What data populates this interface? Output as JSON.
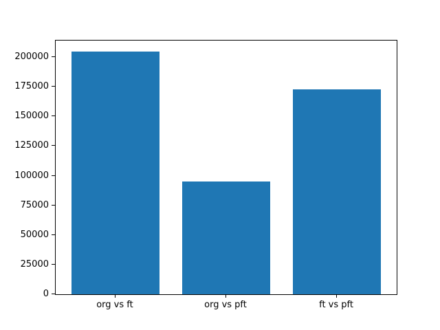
{
  "figure": {
    "background": "#ffffff"
  },
  "chart_data": {
    "type": "bar",
    "title": "",
    "xlabel": "",
    "ylabel": "",
    "categories": [
      "org vs ft",
      "org vs pft",
      "ft vs pft"
    ],
    "values": [
      204500,
      95000,
      173000
    ],
    "yticks": [
      0,
      25000,
      50000,
      75000,
      100000,
      125000,
      150000,
      175000,
      200000
    ],
    "ytick_labels": [
      "0",
      "25000",
      "50000",
      "75000",
      "100000",
      "125000",
      "150000",
      "175000",
      "200000"
    ],
    "ylim": [
      0,
      214000
    ],
    "bar_color": "#1f77b4",
    "axis_color": "#000000",
    "text_color": "#000000",
    "grid": false,
    "legend_position": "none"
  }
}
